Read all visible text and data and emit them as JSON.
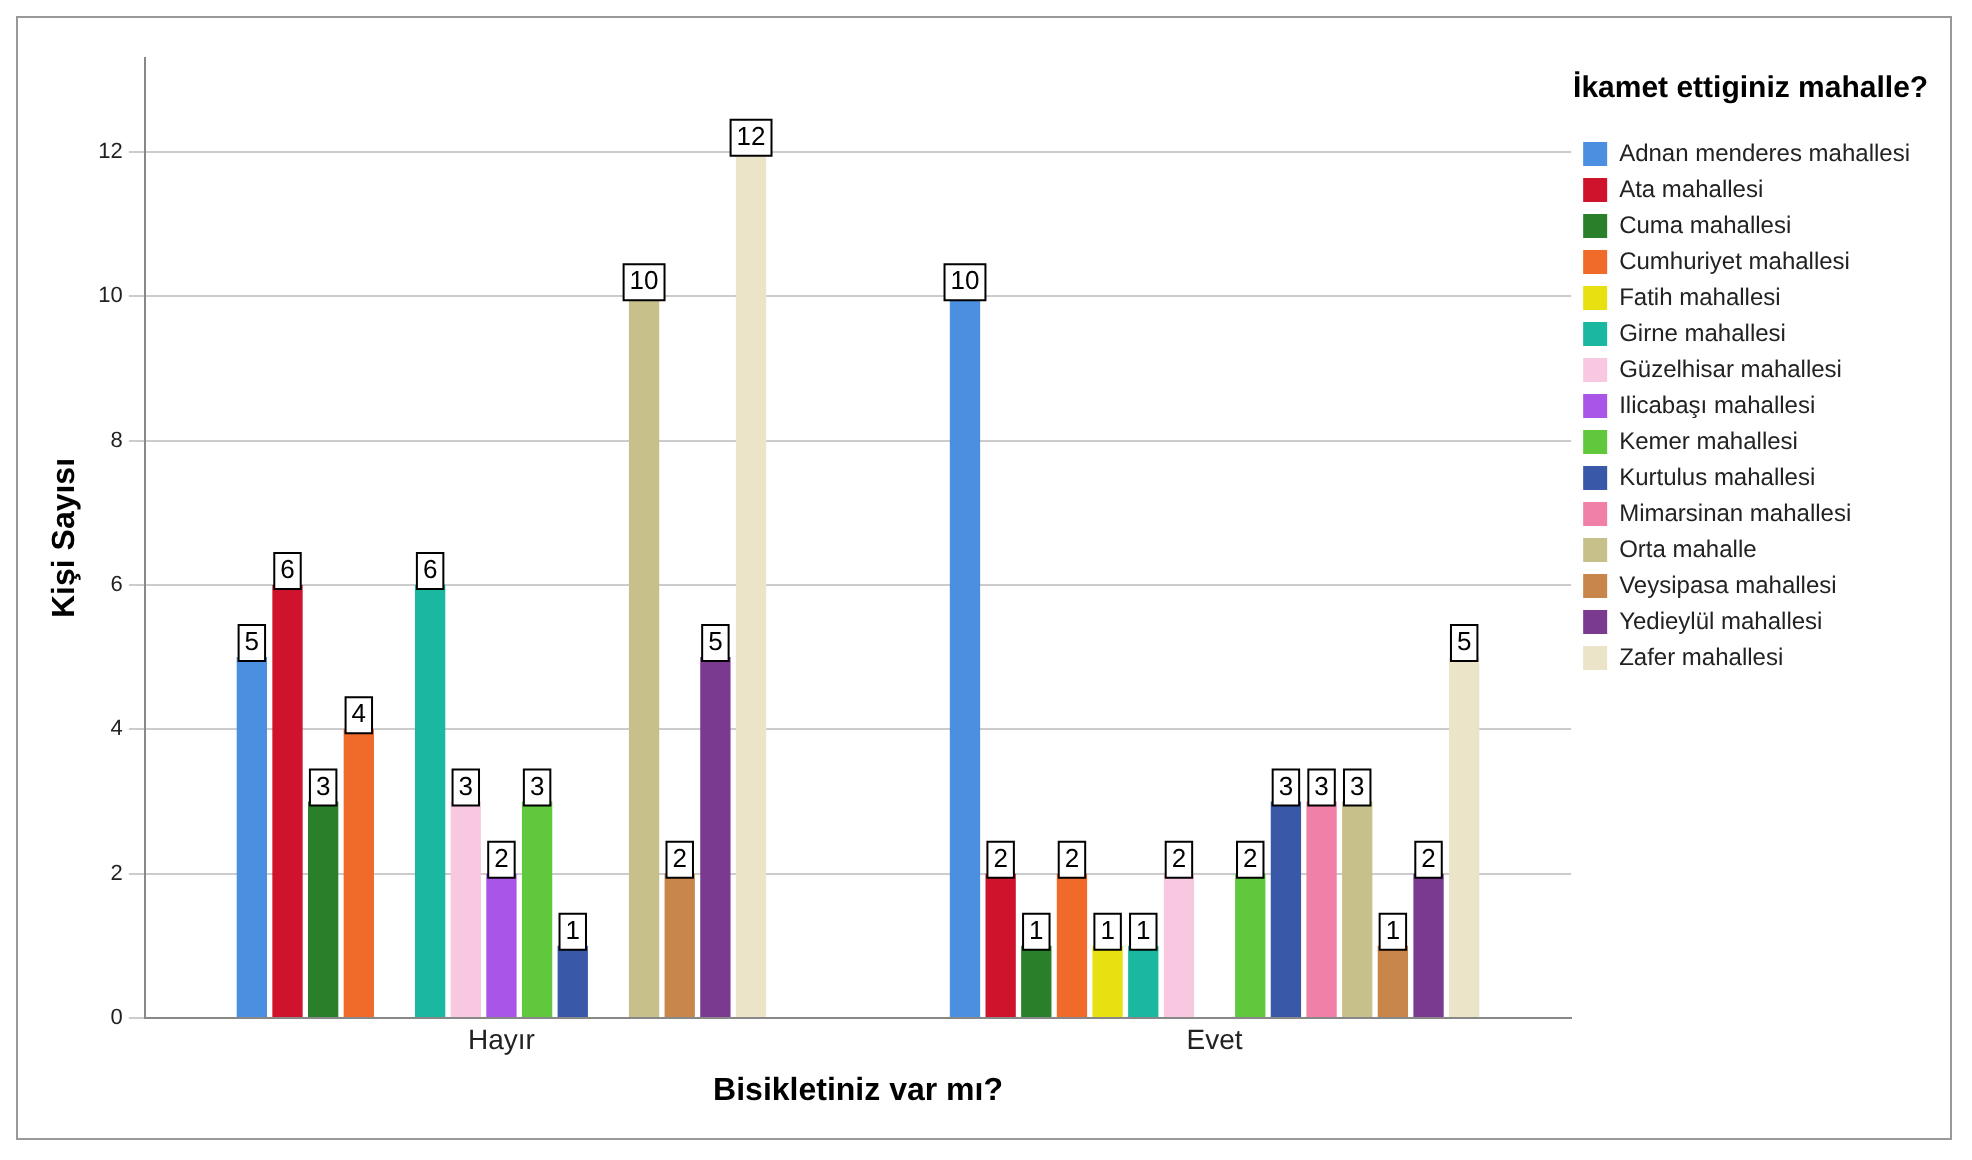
{
  "chart_data": {
    "type": "bar",
    "xlabel": "Bisikletiniz var mı?",
    "ylabel": "Kişi Sayısı",
    "legend_title": "İkamet ettiginiz mahalle?",
    "categories": [
      "Hayır",
      "Evet"
    ],
    "series": [
      {
        "name": "Adnan menderes mahallesi",
        "color": "#4a8fe0",
        "values": [
          5,
          10
        ]
      },
      {
        "name": "Ata mahallesi",
        "color": "#d0132d",
        "values": [
          6,
          2
        ]
      },
      {
        "name": "Cuma mahallesi",
        "color": "#2a7f2a",
        "values": [
          3,
          1
        ]
      },
      {
        "name": "Cumhuriyet mahallesi",
        "color": "#f06a2a",
        "values": [
          4,
          2
        ]
      },
      {
        "name": "Fatih mahallesi",
        "color": "#e8e010",
        "values": [
          null,
          1
        ]
      },
      {
        "name": "Girne mahallesi",
        "color": "#1ab8a0",
        "values": [
          6,
          1
        ]
      },
      {
        "name": "Güzelhisar mahallesi",
        "color": "#f8c8e0",
        "values": [
          3,
          2
        ]
      },
      {
        "name": "Ilicabaşı mahallesi",
        "color": "#a855e8",
        "values": [
          2,
          null
        ]
      },
      {
        "name": "Kemer mahallesi",
        "color": "#5fc83c",
        "values": [
          3,
          2
        ]
      },
      {
        "name": "Kurtulus mahallesi",
        "color": "#3a58a8",
        "values": [
          1,
          3
        ]
      },
      {
        "name": "Mimarsinan mahallesi",
        "color": "#f080a8",
        "values": [
          null,
          3
        ]
      },
      {
        "name": "Orta mahalle",
        "color": "#c8c08a",
        "values": [
          10,
          3
        ]
      },
      {
        "name": "Veysipasa mahallesi",
        "color": "#c8864a",
        "values": [
          2,
          1
        ]
      },
      {
        "name": "Yedieylül mahallesi",
        "color": "#7a3a90",
        "values": [
          5,
          2
        ]
      },
      {
        "name": "Zafer mahallesi",
        "color": "#ece4c8",
        "values": [
          12,
          5
        ]
      }
    ],
    "ylim": [
      0,
      13.3
    ],
    "yticks": [
      0,
      2,
      4,
      6,
      8,
      10,
      12
    ],
    "grid": "y",
    "legend": "right",
    "data_labels": true
  }
}
